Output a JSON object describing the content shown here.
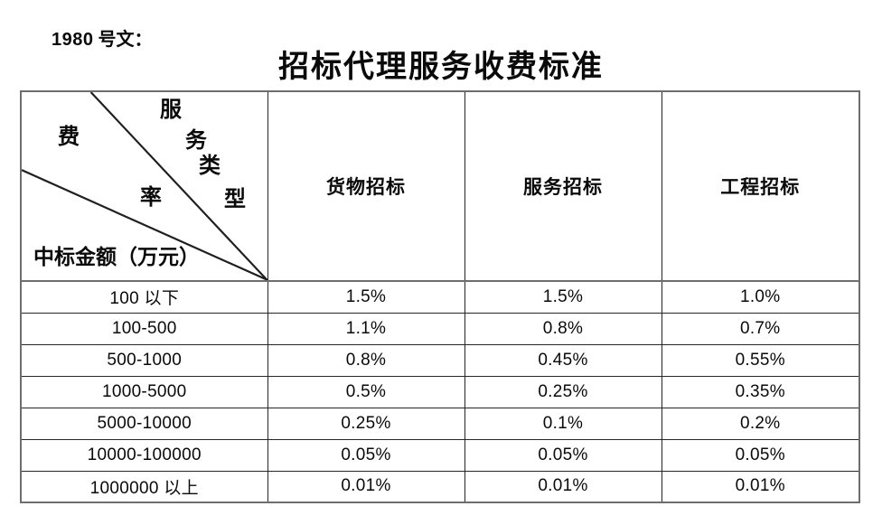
{
  "document": {
    "ref_number": "1980",
    "ref_suffix": " 号文：",
    "title": "招标代理服务收费标准"
  },
  "table": {
    "corner": {
      "fee_char": "费",
      "rate_char": "率",
      "service_chars": [
        "服",
        "务",
        "类",
        "型"
      ],
      "diagonal_label_fee_rate": "费率",
      "diagonal_label_service_type": "服务类型",
      "row_axis_label": "中标金额（万元）"
    },
    "columns": [
      "货物招标",
      "服务招标",
      "工程招标"
    ],
    "rows": [
      {
        "range": "100 以下",
        "goods": "1.5%",
        "service": "1.5%",
        "engineering": "1.0%"
      },
      {
        "range": "100-500",
        "goods": "1.1%",
        "service": "0.8%",
        "engineering": "0.7%"
      },
      {
        "range": "500-1000",
        "goods": "0.8%",
        "service": "0.45%",
        "engineering": "0.55%"
      },
      {
        "range": "1000-5000",
        "goods": "0.5%",
        "service": "0.25%",
        "engineering": "0.35%"
      },
      {
        "range": "5000-10000",
        "goods": "0.25%",
        "service": "0.1%",
        "engineering": "0.2%"
      },
      {
        "range": "10000-100000",
        "goods": "0.05%",
        "service": "0.05%",
        "engineering": "0.05%"
      },
      {
        "range": "1000000 以上",
        "goods": "0.01%",
        "service": "0.01%",
        "engineering": "0.01%"
      }
    ]
  },
  "colors": {
    "text": "#0a0a0a",
    "border_inner": "#262626",
    "border_outer": "#6e6e6e",
    "background": "#ffffff"
  }
}
